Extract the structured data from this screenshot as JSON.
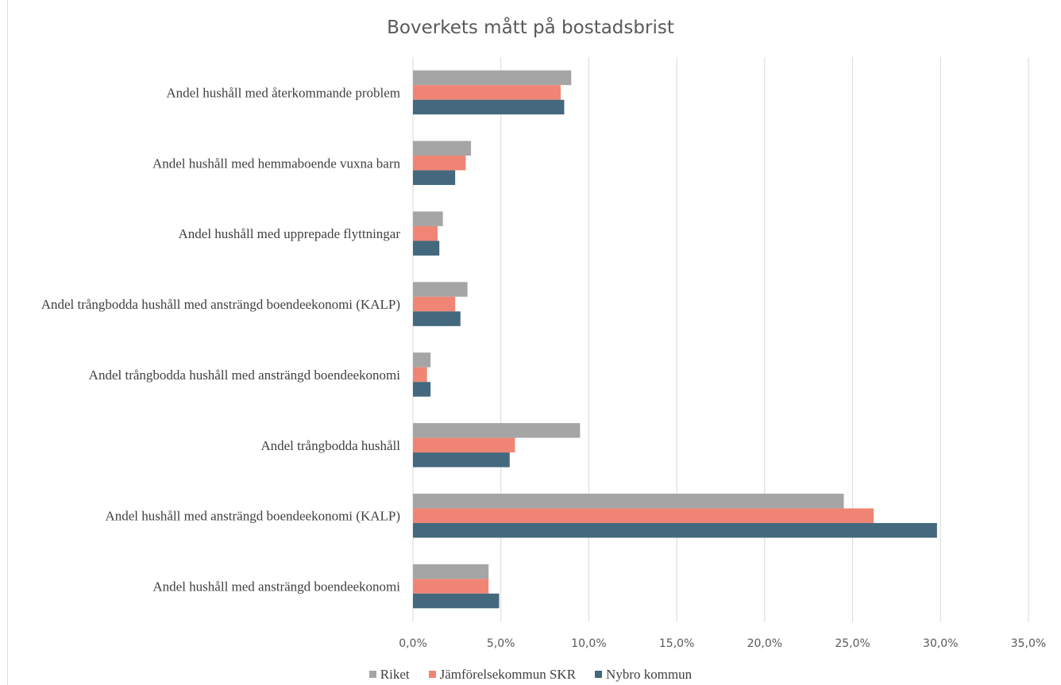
{
  "chart_data": {
    "type": "bar",
    "orientation": "horizontal",
    "title": "Boverkets mått på bostadsbrist",
    "categories": [
      "Andel hushåll med återkommande problem",
      "Andel hushåll med hemmaboende vuxna barn",
      "Andel hushåll med upprepade flyttningar",
      "Andel trångbodda hushåll med ansträngd boendeekonomi (KALP)",
      "Andel trångbodda hushåll med ansträngd boendeekonomi",
      "Andel trångbodda hushåll",
      "Andel hushåll med ansträngd boendeekonomi (KALP)",
      "Andel hushåll med ansträngd boendeekonomi"
    ],
    "series": [
      {
        "name": "Riket",
        "color": "#a5a5a5",
        "values": [
          9.0,
          3.3,
          1.7,
          3.1,
          1.0,
          9.5,
          24.5,
          4.3
        ]
      },
      {
        "name": "Jämförelsekommun SKR",
        "color": "#f08575",
        "values": [
          8.4,
          3.0,
          1.4,
          2.4,
          0.8,
          5.8,
          26.2,
          4.3
        ]
      },
      {
        "name": "Nybro kommun",
        "color": "#44687d",
        "values": [
          8.6,
          2.4,
          1.5,
          2.7,
          1.0,
          5.5,
          29.8,
          4.9
        ]
      }
    ],
    "xlim": [
      0,
      35
    ],
    "xticks": [
      "0,0%",
      "5,0%",
      "10,0%",
      "15,0%",
      "20,0%",
      "25,0%",
      "30,0%",
      "35,0%"
    ],
    "xlabel": "",
    "ylabel": "",
    "grid": "vertical",
    "legend": "bottom"
  }
}
